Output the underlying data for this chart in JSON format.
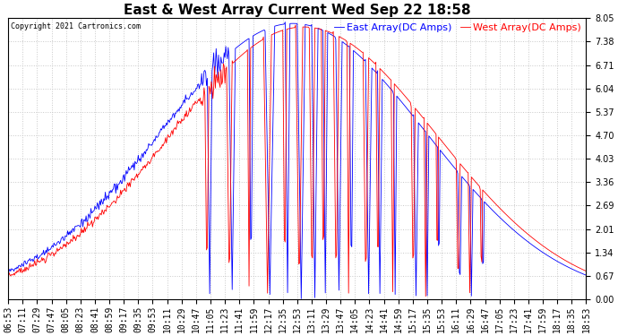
{
  "title": "East & West Array Current Wed Sep 22 18:58",
  "copyright": "Copyright 2021 Cartronics.com",
  "legend_east": "East Array(DC Amps)",
  "legend_west": "West Array(DC Amps)",
  "color_east": "blue",
  "color_west": "red",
  "ylim": [
    0.0,
    8.05
  ],
  "yticks": [
    0.0,
    0.67,
    1.34,
    2.01,
    2.69,
    3.36,
    4.03,
    4.7,
    5.37,
    6.04,
    6.71,
    7.38,
    8.05
  ],
  "background_color": "#ffffff",
  "grid_color": "#c8c8c8",
  "title_fontsize": 11,
  "tick_fontsize": 7,
  "legend_fontsize": 8
}
